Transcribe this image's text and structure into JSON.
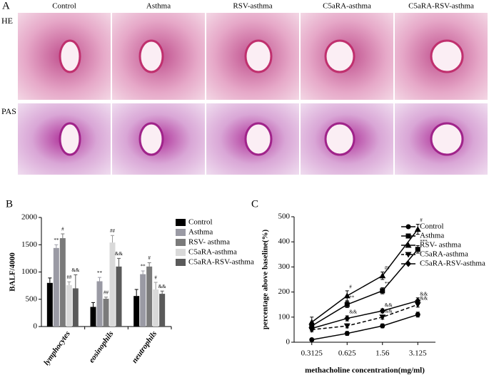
{
  "panel_a": {
    "label": "A",
    "columns": [
      "Control",
      "Asthma",
      "RSV-asthma",
      "C5aRA-asthma",
      "C5aRA-RSV-asthma"
    ],
    "rows": [
      "HE",
      "PAS"
    ]
  },
  "chart_data": [
    {
      "type": "bar",
      "panel": "B",
      "y_label": "BALF/4000",
      "categories": [
        "lymphocytes",
        "eosinophils",
        "neutrophils"
      ],
      "ylim": [
        0,
        2000
      ],
      "yticks": [
        0,
        500,
        1000,
        1500,
        2000
      ],
      "series": [
        {
          "name": "Control",
          "color": "#000000",
          "values": [
            800,
            360,
            560
          ],
          "errors": [
            90,
            80,
            120
          ],
          "annotations": [
            null,
            null,
            null
          ]
        },
        {
          "name": "Asthma",
          "color": "#9a9aa4",
          "values": [
            1440,
            830,
            960
          ],
          "errors": [
            60,
            70,
            60
          ],
          "annotations": [
            "**",
            "**",
            "**"
          ]
        },
        {
          "name": "RSV- asthma",
          "color": "#7a7a7a",
          "values": [
            1620,
            510,
            1100
          ],
          "errors": [
            80,
            30,
            70
          ],
          "annotations": [
            "#",
            "##",
            "#"
          ]
        },
        {
          "name": "C5aRA-asthma",
          "color": "#d9d9d9",
          "values": [
            760,
            1540,
            680
          ],
          "errors": [
            60,
            130,
            130
          ],
          "annotations": [
            "##",
            "##",
            "#"
          ]
        },
        {
          "name": "C5aRA-RSV-asthma",
          "color": "#5a5a5a",
          "values": [
            700,
            1100,
            600
          ],
          "errors": [
            250,
            150,
            50
          ],
          "annotations": [
            "&&",
            "&&",
            "&&"
          ]
        }
      ]
    },
    {
      "type": "line",
      "panel": "C",
      "x_label": "methacholine concentration(mg/ml)",
      "y_label": "percentage above baseline(%)",
      "categories": [
        "0.3125",
        "0.625",
        "1.56",
        "3.125"
      ],
      "ylim": [
        0,
        500
      ],
      "yticks": [
        0,
        100,
        200,
        300,
        400,
        500
      ],
      "series": [
        {
          "name": "Control",
          "color": "#000000",
          "marker": "circle",
          "dashed": false,
          "values": [
            10,
            35,
            65,
            110
          ],
          "errors": [
            5,
            8,
            8,
            10
          ],
          "annotations": [
            null,
            null,
            null,
            null
          ]
        },
        {
          "name": "Asthma",
          "color": "#000000",
          "marker": "square",
          "dashed": false,
          "values": [
            65,
            150,
            205,
            370
          ],
          "errors": [
            15,
            12,
            12,
            15
          ],
          "annotations": [
            null,
            "**",
            "**",
            "***"
          ]
        },
        {
          "name": "RSV- asthma",
          "color": "#000000",
          "marker": "triangle",
          "dashed": false,
          "values": [
            80,
            185,
            265,
            450
          ],
          "errors": [
            20,
            20,
            15,
            20
          ],
          "annotations": [
            null,
            "#",
            "##",
            "#"
          ]
        },
        {
          "name": "C5aRA-asthma",
          "color": "#000000",
          "marker": "triangle-down",
          "dashed": true,
          "values": [
            50,
            65,
            100,
            150
          ],
          "errors": [
            8,
            8,
            8,
            10
          ],
          "annotations": [
            null,
            null,
            "&&",
            "&&"
          ]
        },
        {
          "name": "C5aRA-RSV-asthma",
          "color": "#000000",
          "marker": "diamond",
          "dashed": false,
          "values": [
            55,
            95,
            125,
            165
          ],
          "errors": [
            8,
            10,
            8,
            12
          ],
          "annotations": [
            null,
            "&&",
            "&&",
            "&&"
          ]
        }
      ]
    }
  ]
}
